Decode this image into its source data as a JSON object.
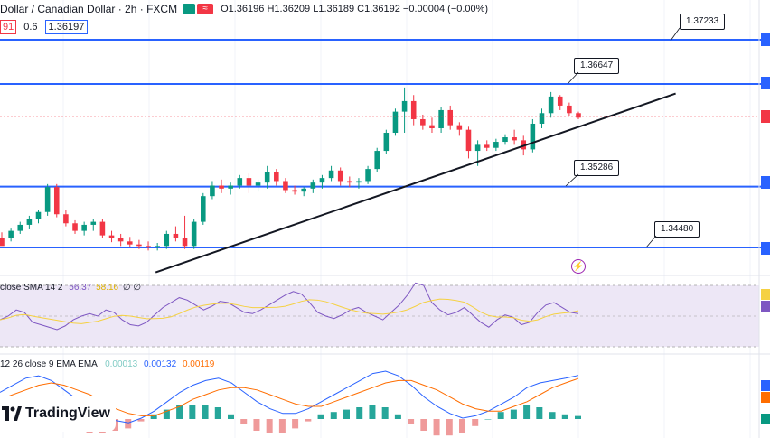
{
  "header": {
    "symbol": "Dollar / Canadian Dollar · 2h · FXCM",
    "badge2_glyph": "≈",
    "ohlc": "O1.36196 H1.36209 L1.36189 C1.36192 −0.00004 (−0.00%)"
  },
  "price_row": {
    "sell": "91",
    "spread": "0.6",
    "buy": "1.36197"
  },
  "levels": [
    {
      "label": "1.37233"
    },
    {
      "label": "1.36647"
    },
    {
      "label": "1.35286"
    },
    {
      "label": "1.34480"
    }
  ],
  "rsi": {
    "title": "close SMA 14 2",
    "value1": "56.37",
    "value2": "58.16",
    "extra": "∅ ∅"
  },
  "macd": {
    "title": "12 26 close 9 EMA EMA",
    "hist": "0.00013",
    "macd": "0.00132",
    "signal": "0.00119"
  },
  "brand": {
    "name": "TradingView",
    "icon": "tradingview-logo-icon"
  },
  "icons": {
    "bolt": "lightning-icon"
  },
  "colors": {
    "up": "#089981",
    "down": "#f23645",
    "level": "#2962ff",
    "rsi": "#7e57c2",
    "rsi_ma": "#f5d142",
    "macd": "#2962ff",
    "signal": "#ff6d00"
  },
  "chart_data": {
    "type": "candlestick",
    "title": "",
    "price_range": [
      1.34,
      1.375
    ],
    "horizontal_levels": [
      1.37233,
      1.36647,
      1.35286,
      1.3448
    ],
    "trendline": {
      "from": [
        0.205,
        1.3415
      ],
      "to": [
        0.89,
        1.3652
      ]
    },
    "candles": [
      [
        1.346,
        1.3468,
        1.3452,
        1.345
      ],
      [
        1.346,
        1.3473,
        1.3456,
        1.347
      ],
      [
        1.347,
        1.3482,
        1.3466,
        1.3478
      ],
      [
        1.3478,
        1.349,
        1.3472,
        1.3486
      ],
      [
        1.3486,
        1.3498,
        1.348,
        1.3495
      ],
      [
        1.3495,
        1.3532,
        1.349,
        1.3528
      ],
      [
        1.3528,
        1.3532,
        1.3488,
        1.3492
      ],
      [
        1.3492,
        1.3498,
        1.3476,
        1.348
      ],
      [
        1.348,
        1.3484,
        1.3466,
        1.347
      ],
      [
        1.347,
        1.3482,
        1.3464,
        1.3478
      ],
      [
        1.3478,
        1.3486,
        1.347,
        1.3482
      ],
      [
        1.3482,
        1.3486,
        1.346,
        1.3464
      ],
      [
        1.3464,
        1.347,
        1.3455,
        1.346
      ],
      [
        1.346,
        1.3466,
        1.345,
        1.3456
      ],
      [
        1.3456,
        1.3462,
        1.3448,
        1.3452
      ],
      [
        1.3452,
        1.3458,
        1.3446,
        1.345
      ],
      [
        1.345,
        1.3456,
        1.3444,
        1.3448
      ],
      [
        1.3448,
        1.3454,
        1.3444,
        1.345
      ],
      [
        1.345,
        1.347,
        1.3446,
        1.3466
      ],
      [
        1.3466,
        1.3476,
        1.3456,
        1.346
      ],
      [
        1.346,
        1.349,
        1.3446,
        1.345
      ],
      [
        1.345,
        1.3486,
        1.3446,
        1.3482
      ],
      [
        1.3482,
        1.352,
        1.3478,
        1.3516
      ],
      [
        1.3516,
        1.3536,
        1.3512,
        1.353
      ],
      [
        1.353,
        1.3538,
        1.352,
        1.3526
      ],
      [
        1.3526,
        1.3534,
        1.3518,
        1.353
      ],
      [
        1.353,
        1.3544,
        1.3526,
        1.354
      ],
      [
        1.354,
        1.3546,
        1.352,
        1.353
      ],
      [
        1.353,
        1.3538,
        1.3522,
        1.3534
      ],
      [
        1.3534,
        1.3556,
        1.3526,
        1.3548
      ],
      [
        1.3548,
        1.3552,
        1.353,
        1.3536
      ],
      [
        1.3536,
        1.354,
        1.352,
        1.3524
      ],
      [
        1.3524,
        1.353,
        1.3518,
        1.3522
      ],
      [
        1.3522,
        1.3528,
        1.3516,
        1.3526
      ],
      [
        1.3526,
        1.3538,
        1.352,
        1.3534
      ],
      [
        1.3534,
        1.3544,
        1.3526,
        1.354
      ],
      [
        1.354,
        1.3556,
        1.3536,
        1.355
      ],
      [
        1.355,
        1.3554,
        1.353,
        1.3536
      ],
      [
        1.3536,
        1.3542,
        1.3528,
        1.3534
      ],
      [
        1.3534,
        1.354,
        1.3526,
        1.3536
      ],
      [
        1.3536,
        1.3556,
        1.3532,
        1.3552
      ],
      [
        1.3552,
        1.358,
        1.3548,
        1.3576
      ],
      [
        1.3576,
        1.3604,
        1.3572,
        1.36
      ],
      [
        1.36,
        1.3632,
        1.3596,
        1.3628
      ],
      [
        1.3628,
        1.366,
        1.36,
        1.3642
      ],
      [
        1.3642,
        1.365,
        1.361,
        1.3618
      ],
      [
        1.3618,
        1.3624,
        1.3604,
        1.361
      ],
      [
        1.361,
        1.362,
        1.36,
        1.3606
      ],
      [
        1.3606,
        1.3634,
        1.36,
        1.363
      ],
      [
        1.363,
        1.3636,
        1.3604,
        1.361
      ],
      [
        1.361,
        1.3614,
        1.3596,
        1.3604
      ],
      [
        1.3604,
        1.3608,
        1.3566,
        1.3576
      ],
      [
        1.3576,
        1.359,
        1.3556,
        1.3584
      ],
      [
        1.3584,
        1.359,
        1.3576,
        1.358
      ],
      [
        1.358,
        1.3592,
        1.3576,
        1.3588
      ],
      [
        1.3588,
        1.3598,
        1.3584,
        1.3594
      ],
      [
        1.3594,
        1.3604,
        1.3584,
        1.359
      ],
      [
        1.359,
        1.3596,
        1.357,
        1.3578
      ],
      [
        1.3578,
        1.3618,
        1.3574,
        1.3612
      ],
      [
        1.3612,
        1.3632,
        1.3606,
        1.3626
      ],
      [
        1.3626,
        1.3654,
        1.362,
        1.3648
      ],
      [
        1.3648,
        1.365,
        1.363,
        1.3636
      ],
      [
        1.3636,
        1.364,
        1.3622,
        1.3626
      ],
      [
        1.3626,
        1.3628,
        1.3618,
        1.362
      ]
    ],
    "rsi_series": [
      52,
      55,
      60,
      58,
      50,
      48,
      46,
      44,
      47,
      52,
      55,
      57,
      55,
      60,
      58,
      52,
      48,
      47,
      50,
      56,
      62,
      66,
      70,
      68,
      64,
      60,
      63,
      67,
      66,
      62,
      58,
      57,
      60,
      64,
      68,
      72,
      75,
      73,
      66,
      58,
      55,
      53,
      56,
      60,
      62,
      58,
      55,
      52,
      58,
      64,
      72,
      82,
      80,
      66,
      60,
      56,
      58,
      62,
      56,
      50,
      46,
      52,
      56,
      54,
      48,
      50,
      58,
      64,
      66,
      62,
      58,
      57
    ],
    "macd_series": [
      0.0006,
      0.0009,
      0.0012,
      0.0013,
      0.0011,
      0.0007,
      0.0003,
      -0.0001,
      -0.0004,
      -0.0006,
      -0.0007,
      -0.0005,
      -0.0002,
      0.0002,
      0.0006,
      0.0009,
      0.0011,
      0.0012,
      0.001,
      0.0006,
      0.0002,
      -0.0001,
      -0.0003,
      -0.0003,
      -0.0001,
      0.0002,
      0.0005,
      0.0008,
      0.0011,
      0.0014,
      0.0015,
      0.0013,
      0.0009,
      0.0004,
      0.0,
      -0.0003,
      -0.0005,
      -0.0004,
      -0.0002,
      0.0001,
      0.0004,
      0.0008,
      0.001,
      0.0011,
      0.0012,
      0.00132
    ],
    "signal_series": [
      0.0003,
      0.0005,
      0.0007,
      0.0009,
      0.001,
      0.0009,
      0.0007,
      0.0005,
      0.0002,
      -0.0001,
      -0.0003,
      -0.0004,
      -0.0004,
      -0.0002,
      0.0,
      0.0003,
      0.0005,
      0.0007,
      0.0008,
      0.0008,
      0.0007,
      0.0005,
      0.0003,
      0.0001,
      0.0,
      0.0,
      0.0002,
      0.0004,
      0.0006,
      0.0008,
      0.001,
      0.0011,
      0.0011,
      0.0009,
      0.0007,
      0.0004,
      0.0001,
      -0.0001,
      -0.0002,
      -0.0002,
      0.0,
      0.0002,
      0.0005,
      0.0008,
      0.001,
      0.00119
    ]
  }
}
